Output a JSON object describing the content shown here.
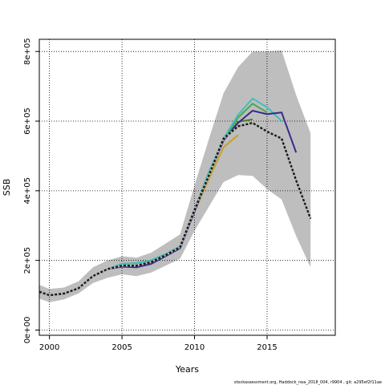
{
  "chart_data": {
    "type": "line",
    "xlabel": "Years",
    "ylabel": "SSB",
    "xlim": [
      1999.3,
      2019.7
    ],
    "ylim": [
      -15000,
      835000
    ],
    "x_ticks": [
      2000,
      2005,
      2010,
      2015
    ],
    "y_ticks": [
      0,
      200000,
      400000,
      600000,
      800000
    ],
    "x_tick_labels": [
      "2000",
      "2005",
      "2010",
      "2015"
    ],
    "y_tick_labels": [
      "0e+00",
      "2e+05",
      "4e+05",
      "6e+05",
      "8e+05"
    ],
    "grid": true,
    "band": {
      "color": "#bebebe",
      "x": [
        1999,
        2000,
        2001,
        2002,
        2003,
        2004,
        2005,
        2006,
        2007,
        2008,
        2009,
        2010,
        2011,
        2012,
        2013,
        2014,
        2015,
        2016,
        2017,
        2018
      ],
      "lower": [
        90000,
        80000,
        88000,
        105000,
        135000,
        150000,
        160000,
        155000,
        165000,
        185000,
        205000,
        285000,
        355000,
        425000,
        445000,
        443000,
        405000,
        375000,
        270000,
        180000
      ],
      "upper": [
        130000,
        118000,
        122000,
        140000,
        180000,
        200000,
        212000,
        208000,
        222000,
        248000,
        275000,
        415000,
        550000,
        680000,
        755000,
        800000,
        800000,
        803000,
        675000,
        565000
      ]
    },
    "series": [
      {
        "color": "#1a1a1a",
        "dashed": true,
        "x": [
          1999,
          2000,
          2001,
          2002,
          2003,
          2004,
          2005,
          2006,
          2007,
          2008,
          2009,
          2010,
          2011,
          2012,
          2013,
          2014,
          2015,
          2016,
          2017,
          2018
        ],
        "values": [
          110000,
          100000,
          105000,
          120000,
          155000,
          175000,
          185000,
          185000,
          195000,
          215000,
          238000,
          345000,
          445000,
          550000,
          585000,
          595000,
          570000,
          550000,
          430000,
          320000
        ]
      },
      {
        "color": "#3a2a8c",
        "dashed": false,
        "x": [
          1999,
          2000,
          2001,
          2002,
          2003,
          2004,
          2005,
          2006,
          2007,
          2008,
          2009,
          2010,
          2011,
          2012,
          2013,
          2014,
          2015,
          2016,
          2017
        ],
        "values": [
          110000,
          100000,
          104000,
          120000,
          155000,
          175000,
          182000,
          180000,
          190000,
          212000,
          235000,
          340000,
          445000,
          545000,
          595000,
          630000,
          620000,
          625000,
          510000
        ]
      },
      {
        "color": "#3fbfbf",
        "dashed": false,
        "x": [
          1999,
          2000,
          2001,
          2002,
          2003,
          2004,
          2005,
          2006,
          2007,
          2008,
          2009,
          2010,
          2011,
          2012,
          2013,
          2014,
          2015,
          2016
        ],
        "values": [
          110000,
          100000,
          104000,
          120000,
          155000,
          175000,
          190000,
          192000,
          200000,
          218000,
          240000,
          345000,
          455000,
          550000,
          618000,
          665000,
          640000,
          600000
        ]
      },
      {
        "color": "#4aa84a",
        "dashed": false,
        "x": [
          1999,
          2000,
          2001,
          2002,
          2003,
          2004,
          2005,
          2006,
          2007,
          2008,
          2009,
          2010,
          2011,
          2012,
          2013,
          2014,
          2015
        ],
        "values": [
          110000,
          100000,
          104000,
          120000,
          155000,
          175000,
          190000,
          192000,
          200000,
          218000,
          240000,
          345000,
          455000,
          545000,
          610000,
          650000,
          625000
        ]
      },
      {
        "color": "#4a7a28",
        "dashed": false,
        "x": [
          1999,
          2000,
          2001,
          2002,
          2003,
          2004,
          2005,
          2006,
          2007,
          2008,
          2009,
          2010,
          2011,
          2012,
          2013,
          2014
        ],
        "values": [
          110000,
          100000,
          104000,
          120000,
          155000,
          175000,
          190000,
          192000,
          200000,
          218000,
          240000,
          345000,
          450000,
          545000,
          598000,
          605000
        ]
      },
      {
        "color": "#c8a028",
        "dashed": false,
        "x": [
          1999,
          2000,
          2001,
          2002,
          2003,
          2004,
          2005,
          2006,
          2007,
          2008,
          2009,
          2010,
          2011,
          2012,
          2013
        ],
        "values": [
          110000,
          100000,
          104000,
          120000,
          155000,
          175000,
          190000,
          192000,
          200000,
          218000,
          240000,
          340000,
          435000,
          525000,
          560000
        ]
      }
    ]
  },
  "footer": "stockassessment.org, Haddock_nea_2018_004, r9904 , git: a295ef2f11ae"
}
